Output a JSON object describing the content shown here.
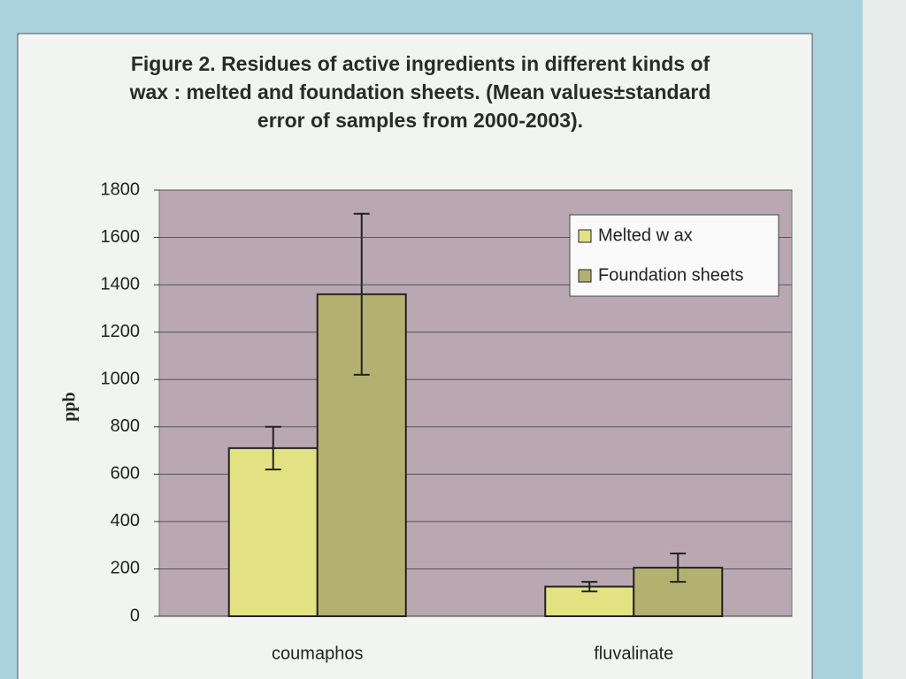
{
  "chart_data": {
    "type": "bar",
    "title": "Figure 2. Residues of active ingredients in different kinds of wax : melted and foundation sheets. (Mean values±standard error of samples from 2000-2003).",
    "y_label": "ppb",
    "categories": [
      "coumaphos",
      "fluvalinate"
    ],
    "series": [
      {
        "name": "Melted w ax",
        "color": "#e2e283",
        "values": [
          710,
          125
        ],
        "errors": [
          90,
          20
        ]
      },
      {
        "name": "Foundation sheets",
        "color": "#b4b070",
        "values": [
          1360,
          205
        ],
        "errors": [
          340,
          60
        ]
      }
    ],
    "ylim": [
      0,
      1800
    ],
    "yticks": [
      0,
      200,
      400,
      600,
      800,
      1000,
      1200,
      1400,
      1600,
      1800
    ],
    "grid": true,
    "legend": "top-right"
  }
}
